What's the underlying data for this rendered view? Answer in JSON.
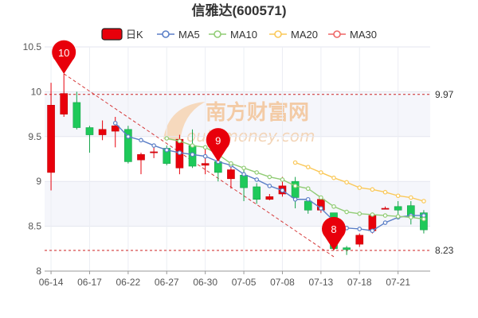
{
  "chart_data": {
    "type": "candlestick",
    "title": "信雅达(600571)",
    "watermark": {
      "cn": "南方财富网",
      "en": "outhmoney.com"
    },
    "legend": {
      "placement": "top",
      "items": [
        {
          "key": "k",
          "label": "日K",
          "color": "#e8000b"
        },
        {
          "key": "ma5",
          "label": "MA5",
          "color": "#5b7fc7"
        },
        {
          "key": "ma10",
          "label": "MA10",
          "color": "#91cc75"
        },
        {
          "key": "ma20",
          "label": "MA20",
          "color": "#fac858"
        },
        {
          "key": "ma30",
          "label": "MA30",
          "color": "#ee6666"
        }
      ]
    },
    "ylim": [
      8,
      10.5
    ],
    "yticks": [
      8,
      8.5,
      9,
      9.5,
      10,
      10.5
    ],
    "grid": true,
    "x_tick_labels": [
      "06-14",
      "06-17",
      "06-22",
      "06-27",
      "06-30",
      "07-05",
      "07-08",
      "07-13",
      "07-18",
      "07-21"
    ],
    "x_tick_index": [
      0,
      3,
      6,
      9,
      12,
      15,
      18,
      21,
      24,
      27
    ],
    "candles": [
      {
        "o": 9.1,
        "c": 9.85,
        "h": 10.1,
        "l": 8.9
      },
      {
        "o": 9.75,
        "c": 9.98,
        "h": 10.2,
        "l": 9.72
      },
      {
        "o": 9.88,
        "c": 9.6,
        "h": 10.0,
        "l": 9.58
      },
      {
        "o": 9.6,
        "c": 9.52,
        "h": 9.62,
        "l": 9.32
      },
      {
        "o": 9.52,
        "c": 9.58,
        "h": 9.68,
        "l": 9.46
      },
      {
        "o": 9.56,
        "c": 9.62,
        "h": 9.72,
        "l": 9.38
      },
      {
        "o": 9.58,
        "c": 9.22,
        "h": 9.62,
        "l": 9.2
      },
      {
        "o": 9.24,
        "c": 9.3,
        "h": 9.32,
        "l": 9.08
      },
      {
        "o": 9.32,
        "c": 9.33,
        "h": 9.4,
        "l": 9.26
      },
      {
        "o": 9.37,
        "c": 9.2,
        "h": 9.4,
        "l": 9.18
      },
      {
        "o": 9.15,
        "c": 9.47,
        "h": 9.52,
        "l": 9.08
      },
      {
        "o": 9.4,
        "c": 9.17,
        "h": 9.58,
        "l": 9.15
      },
      {
        "o": 9.18,
        "c": 9.2,
        "h": 9.4,
        "l": 9.08
      },
      {
        "o": 9.22,
        "c": 9.1,
        "h": 9.3,
        "l": 9.0
      },
      {
        "o": 9.03,
        "c": 9.13,
        "h": 9.18,
        "l": 8.92
      },
      {
        "o": 9.07,
        "c": 8.93,
        "h": 9.13,
        "l": 8.78
      },
      {
        "o": 8.94,
        "c": 8.8,
        "h": 8.98,
        "l": 8.75
      },
      {
        "o": 8.8,
        "c": 8.83,
        "h": 8.86,
        "l": 8.79
      },
      {
        "o": 8.86,
        "c": 8.95,
        "h": 9.05,
        "l": 8.83
      },
      {
        "o": 9.0,
        "c": 8.82,
        "h": 9.05,
        "l": 8.7
      },
      {
        "o": 8.78,
        "c": 8.68,
        "h": 8.82,
        "l": 8.64
      },
      {
        "o": 8.68,
        "c": 8.8,
        "h": 8.84,
        "l": 8.65
      },
      {
        "o": 8.65,
        "c": 8.25,
        "h": 8.65,
        "l": 8.23
      },
      {
        "o": 8.26,
        "c": 8.24,
        "h": 8.28,
        "l": 8.18
      },
      {
        "o": 8.3,
        "c": 8.4,
        "h": 8.42,
        "l": 8.27
      },
      {
        "o": 8.45,
        "c": 8.62,
        "h": 8.64,
        "l": 8.42
      },
      {
        "o": 8.7,
        "c": 8.7,
        "h": 8.72,
        "l": 8.69
      },
      {
        "o": 8.72,
        "c": 8.68,
        "h": 8.78,
        "l": 8.63
      },
      {
        "o": 8.73,
        "c": 8.6,
        "h": 8.78,
        "l": 8.52
      },
      {
        "o": 8.65,
        "c": 8.46,
        "h": 8.68,
        "l": 8.42
      }
    ],
    "ma": {
      "ma5": {
        "start": 5,
        "values": [
          9.65,
          9.5,
          9.46,
          9.4,
          9.35,
          9.32,
          9.3,
          9.28,
          9.22,
          9.18,
          9.08,
          9.02,
          8.95,
          8.9,
          8.8,
          8.8,
          8.7,
          8.56,
          8.48,
          8.47,
          8.45,
          8.54,
          8.6,
          8.62,
          8.62
        ]
      },
      "ma10": {
        "start": 9,
        "values": [
          9.48,
          9.45,
          9.4,
          9.38,
          9.3,
          9.2,
          9.15,
          9.1,
          9.05,
          9.02,
          8.95,
          8.92,
          8.82,
          8.72,
          8.66,
          8.64,
          8.63,
          8.62,
          8.61,
          8.6,
          8.58
        ]
      },
      "ma20": {
        "start": 19,
        "values": [
          9.21,
          9.16,
          9.1,
          9.04,
          8.99,
          8.93,
          8.91,
          8.88,
          8.84,
          8.82,
          8.78
        ]
      }
    },
    "reference_lines": [
      {
        "value": 9.97,
        "label": "9.97"
      },
      {
        "value": 8.23,
        "label": "8.23"
      }
    ],
    "markers": [
      {
        "index": 1,
        "price": 10.2,
        "label": "10"
      },
      {
        "index": 13,
        "price": 9.22,
        "label": "9"
      },
      {
        "index": 22,
        "price": 8.23,
        "label": "8"
      }
    ],
    "trend_line": {
      "from": {
        "index": 1,
        "price": 10.2
      },
      "to": {
        "index": 22,
        "price": 8.16
      }
    }
  }
}
